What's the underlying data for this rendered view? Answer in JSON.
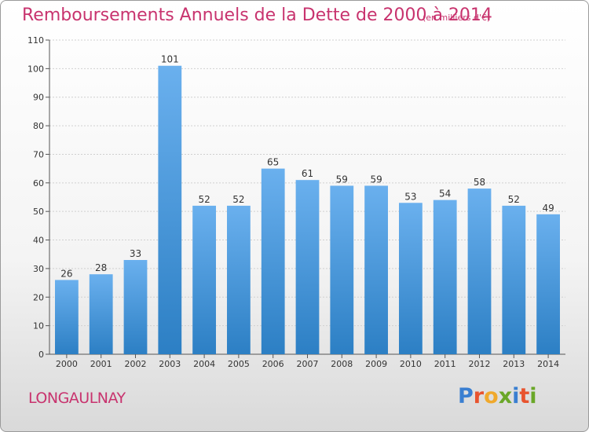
{
  "title": "Remboursements Annuels de la Dette de 2000 à 2014",
  "unit_note": "(en milliers d'€)",
  "commune": "LONGAULNAY",
  "brand": {
    "letters": [
      "P",
      "r",
      "o",
      "x",
      "i",
      "t",
      "i"
    ],
    "colors": [
      "#3a7fd1",
      "#e8542f",
      "#f0a92c",
      "#6aa728",
      "#3a7fd1",
      "#e8542f",
      "#6aa728"
    ]
  },
  "colors": {
    "bar_top": "#6ab0ee",
    "bar_bottom": "#2c7fc4",
    "accent": "#c8336e"
  },
  "chart_data": {
    "type": "bar",
    "categories": [
      "2000",
      "2001",
      "2002",
      "2003",
      "2004",
      "2005",
      "2006",
      "2007",
      "2008",
      "2009",
      "2010",
      "2011",
      "2012",
      "2013",
      "2014"
    ],
    "values": [
      26,
      28,
      33,
      101,
      52,
      52,
      65,
      61,
      59,
      59,
      53,
      54,
      58,
      52,
      49
    ],
    "ylim": [
      0,
      110
    ],
    "yticks": [
      0,
      10,
      20,
      30,
      40,
      50,
      60,
      70,
      80,
      90,
      100,
      110
    ],
    "grid": true
  }
}
